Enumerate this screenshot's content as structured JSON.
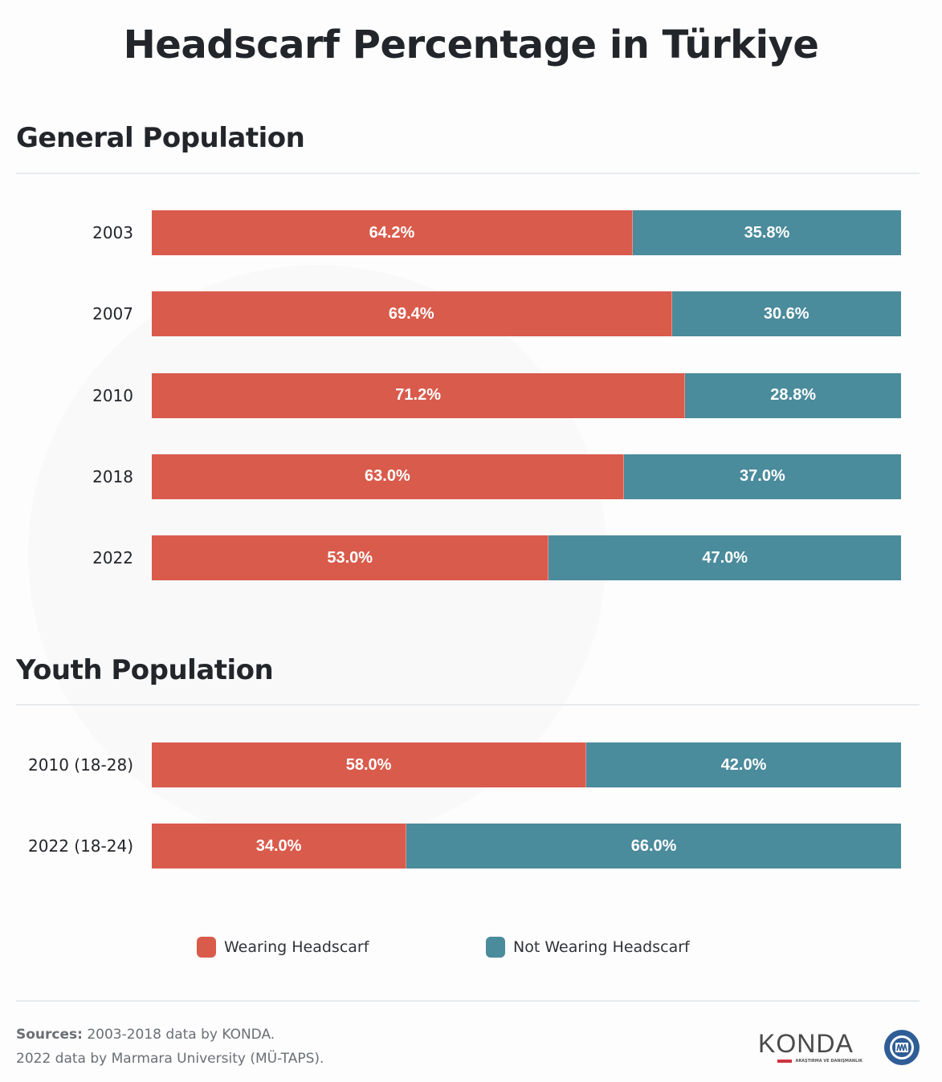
{
  "title": "Headscarf Percentage in Türkiye",
  "colors": {
    "wearing": "#d95b4c",
    "not_wearing": "#4a8b9c",
    "text": "#22252a",
    "divider": "#e7ebee"
  },
  "sections": {
    "general": {
      "title": "General Population"
    },
    "youth": {
      "title": "Youth Population"
    }
  },
  "legend": {
    "wearing": "Wearing Headscarf",
    "not_wearing": "Not Wearing Headscarf"
  },
  "footer": {
    "sources_label": "Sources:",
    "sources_line1": " 2003-2018 data by KONDA.",
    "sources_line2": "2022 data by Marmara University (MÜ-TAPS).",
    "logo_konda": "KONDA",
    "logo_konda_sub": "ARAŞTIRMA VE DANIŞMANLIK",
    "logo_marmara": "Marmara University seal",
    "logo_marmara_year": "1883"
  },
  "chart_data": [
    {
      "type": "bar",
      "orientation": "horizontal",
      "stacked": true,
      "title": "General Population",
      "categories": [
        "2003",
        "2007",
        "2010",
        "2018",
        "2022"
      ],
      "series": [
        {
          "name": "Wearing Headscarf",
          "values": [
            64.2,
            69.4,
            71.2,
            63.0,
            53.0
          ],
          "labels": [
            "64.2%",
            "69.4%",
            "71.2%",
            "63.0%",
            "53.0%"
          ]
        },
        {
          "name": "Not Wearing Headscarf",
          "values": [
            35.8,
            30.6,
            28.8,
            37.0,
            47.0
          ],
          "labels": [
            "35.8%",
            "30.6%",
            "28.8%",
            "37.0%",
            "47.0%"
          ]
        }
      ],
      "xlim": [
        0,
        100
      ],
      "grid": false,
      "legend": "bottom"
    },
    {
      "type": "bar",
      "orientation": "horizontal",
      "stacked": true,
      "title": "Youth Population",
      "categories": [
        "2010 (18-28)",
        "2022 (18-24)"
      ],
      "series": [
        {
          "name": "Wearing Headscarf",
          "values": [
            58.0,
            34.0
          ],
          "labels": [
            "58.0%",
            "34.0%"
          ]
        },
        {
          "name": "Not Wearing Headscarf",
          "values": [
            42.0,
            66.0
          ],
          "labels": [
            "42.0%",
            "66.0%"
          ]
        }
      ],
      "xlim": [
        0,
        100
      ],
      "grid": false,
      "legend": "bottom"
    }
  ]
}
